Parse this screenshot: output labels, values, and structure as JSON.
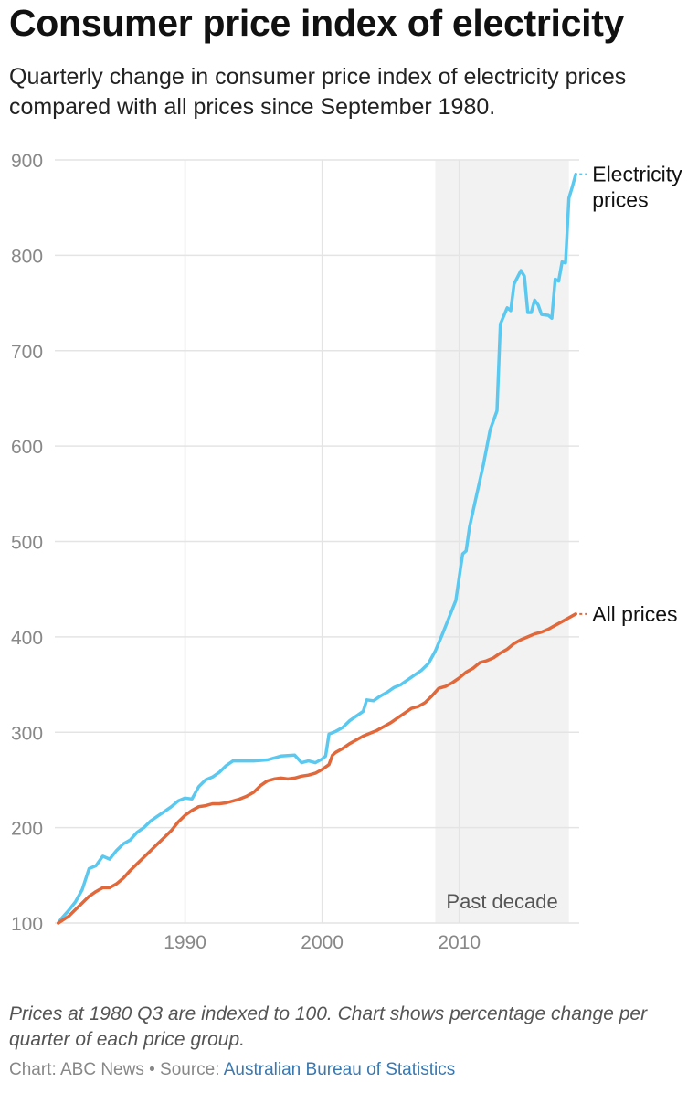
{
  "header": {
    "title": "Consumer price index of electricity",
    "subtitle": "Quarterly change in consumer price index of electricity prices compared with all prices since September 1980."
  },
  "footer": {
    "note": "Prices at 1980 Q3 are indexed to 100. Chart shows percentage change per quarter of each price group.",
    "credit_prefix": "Chart: ABC News • Source: ",
    "source_link": "Australian Bureau of Statistics"
  },
  "colors": {
    "electricity": "#5bc8ef",
    "all_prices": "#e0683a",
    "shade": "#f2f2f2",
    "grid": "#e4e4e4",
    "link": "#3a78b0"
  },
  "chart_data": {
    "type": "line",
    "title": "Consumer price index of electricity",
    "xlabel": "",
    "ylabel": "",
    "xlim": [
      1980.5,
      2018.75
    ],
    "ylim": [
      100,
      900
    ],
    "x_ticks": [
      1990,
      2000,
      2010
    ],
    "y_ticks": [
      100,
      200,
      300,
      400,
      500,
      600,
      700,
      800,
      900
    ],
    "shaded_region": {
      "x_start": 2008.25,
      "x_end": 2018.0,
      "label": "Past decade"
    },
    "series": [
      {
        "name": "Electricity prices",
        "label_lines": [
          "Electricity",
          "prices"
        ],
        "color_key": "electricity",
        "points": [
          [
            1980.75,
            100
          ],
          [
            1981.0,
            105
          ],
          [
            1981.5,
            113
          ],
          [
            1982.0,
            122
          ],
          [
            1982.5,
            135
          ],
          [
            1983.0,
            157
          ],
          [
            1983.5,
            160
          ],
          [
            1984.0,
            170
          ],
          [
            1984.5,
            167
          ],
          [
            1985.0,
            176
          ],
          [
            1985.5,
            183
          ],
          [
            1986.0,
            187
          ],
          [
            1986.5,
            195
          ],
          [
            1987.0,
            200
          ],
          [
            1987.5,
            207
          ],
          [
            1988.0,
            212
          ],
          [
            1988.5,
            217
          ],
          [
            1989.0,
            222
          ],
          [
            1989.5,
            228
          ],
          [
            1990.0,
            231
          ],
          [
            1990.5,
            230
          ],
          [
            1991.0,
            243
          ],
          [
            1991.5,
            250
          ],
          [
            1992.0,
            253
          ],
          [
            1992.5,
            258
          ],
          [
            1993.0,
            265
          ],
          [
            1993.5,
            270
          ],
          [
            1994.0,
            270
          ],
          [
            1995.0,
            270
          ],
          [
            1996.0,
            271
          ],
          [
            1996.5,
            273
          ],
          [
            1997.0,
            275
          ],
          [
            1998.0,
            276
          ],
          [
            1998.5,
            268
          ],
          [
            1999.0,
            270
          ],
          [
            1999.5,
            268
          ],
          [
            2000.0,
            272
          ],
          [
            2000.25,
            275
          ],
          [
            2000.5,
            298
          ],
          [
            2001.0,
            301
          ],
          [
            2001.5,
            305
          ],
          [
            2002.0,
            312
          ],
          [
            2002.5,
            317
          ],
          [
            2003.0,
            322
          ],
          [
            2003.25,
            334
          ],
          [
            2003.75,
            333
          ],
          [
            2004.25,
            338
          ],
          [
            2004.75,
            342
          ],
          [
            2005.25,
            347
          ],
          [
            2005.75,
            350
          ],
          [
            2006.25,
            355
          ],
          [
            2006.75,
            360
          ],
          [
            2007.25,
            365
          ],
          [
            2007.75,
            372
          ],
          [
            2008.25,
            385
          ],
          [
            2008.75,
            402
          ],
          [
            2009.25,
            420
          ],
          [
            2009.75,
            438
          ],
          [
            2010.25,
            487
          ],
          [
            2010.5,
            490
          ],
          [
            2010.75,
            515
          ],
          [
            2011.25,
            548
          ],
          [
            2011.75,
            580
          ],
          [
            2012.25,
            617
          ],
          [
            2012.75,
            637
          ],
          [
            2013.0,
            728
          ],
          [
            2013.5,
            745
          ],
          [
            2013.75,
            742
          ],
          [
            2014.0,
            770
          ],
          [
            2014.5,
            784
          ],
          [
            2014.75,
            778
          ],
          [
            2015.0,
            740
          ],
          [
            2015.25,
            740
          ],
          [
            2015.5,
            753
          ],
          [
            2015.75,
            748
          ],
          [
            2016.0,
            738
          ],
          [
            2016.5,
            737
          ],
          [
            2016.75,
            734
          ],
          [
            2017.0,
            775
          ],
          [
            2017.25,
            773
          ],
          [
            2017.5,
            793
          ],
          [
            2017.75,
            792
          ],
          [
            2018.0,
            860
          ],
          [
            2018.25,
            872
          ],
          [
            2018.5,
            885
          ]
        ]
      },
      {
        "name": "All prices",
        "label_lines": [
          "All prices"
        ],
        "color_key": "all_prices",
        "points": [
          [
            1980.75,
            100
          ],
          [
            1981.5,
            107
          ],
          [
            1982.0,
            114
          ],
          [
            1982.5,
            121
          ],
          [
            1983.0,
            128
          ],
          [
            1983.5,
            133
          ],
          [
            1984.0,
            137
          ],
          [
            1984.5,
            137
          ],
          [
            1985.0,
            141
          ],
          [
            1985.5,
            147
          ],
          [
            1986.0,
            155
          ],
          [
            1986.5,
            162
          ],
          [
            1987.0,
            169
          ],
          [
            1987.5,
            176
          ],
          [
            1988.0,
            183
          ],
          [
            1988.5,
            190
          ],
          [
            1989.0,
            197
          ],
          [
            1989.5,
            206
          ],
          [
            1990.0,
            213
          ],
          [
            1990.5,
            218
          ],
          [
            1991.0,
            222
          ],
          [
            1991.5,
            223
          ],
          [
            1992.0,
            225
          ],
          [
            1992.5,
            225
          ],
          [
            1993.0,
            226
          ],
          [
            1993.5,
            228
          ],
          [
            1994.0,
            230
          ],
          [
            1994.5,
            233
          ],
          [
            1995.0,
            237
          ],
          [
            1995.5,
            244
          ],
          [
            1996.0,
            249
          ],
          [
            1996.5,
            251
          ],
          [
            1997.0,
            252
          ],
          [
            1997.5,
            251
          ],
          [
            1998.0,
            252
          ],
          [
            1998.5,
            254
          ],
          [
            1999.0,
            255
          ],
          [
            1999.5,
            257
          ],
          [
            2000.0,
            261
          ],
          [
            2000.5,
            266
          ],
          [
            2000.75,
            276
          ],
          [
            2001.0,
            279
          ],
          [
            2001.5,
            283
          ],
          [
            2002.0,
            288
          ],
          [
            2002.5,
            292
          ],
          [
            2003.0,
            296
          ],
          [
            2003.5,
            299
          ],
          [
            2004.0,
            302
          ],
          [
            2004.5,
            306
          ],
          [
            2005.0,
            310
          ],
          [
            2005.5,
            315
          ],
          [
            2006.0,
            320
          ],
          [
            2006.5,
            325
          ],
          [
            2007.0,
            327
          ],
          [
            2007.5,
            331
          ],
          [
            2008.0,
            338
          ],
          [
            2008.5,
            346
          ],
          [
            2009.0,
            348
          ],
          [
            2009.5,
            352
          ],
          [
            2010.0,
            357
          ],
          [
            2010.5,
            363
          ],
          [
            2011.0,
            367
          ],
          [
            2011.5,
            373
          ],
          [
            2012.0,
            375
          ],
          [
            2012.5,
            378
          ],
          [
            2013.0,
            383
          ],
          [
            2013.5,
            387
          ],
          [
            2014.0,
            393
          ],
          [
            2014.5,
            397
          ],
          [
            2015.0,
            400
          ],
          [
            2015.5,
            403
          ],
          [
            2016.0,
            405
          ],
          [
            2016.5,
            408
          ],
          [
            2017.0,
            412
          ],
          [
            2017.5,
            416
          ],
          [
            2018.0,
            420
          ],
          [
            2018.5,
            424
          ]
        ]
      }
    ]
  }
}
